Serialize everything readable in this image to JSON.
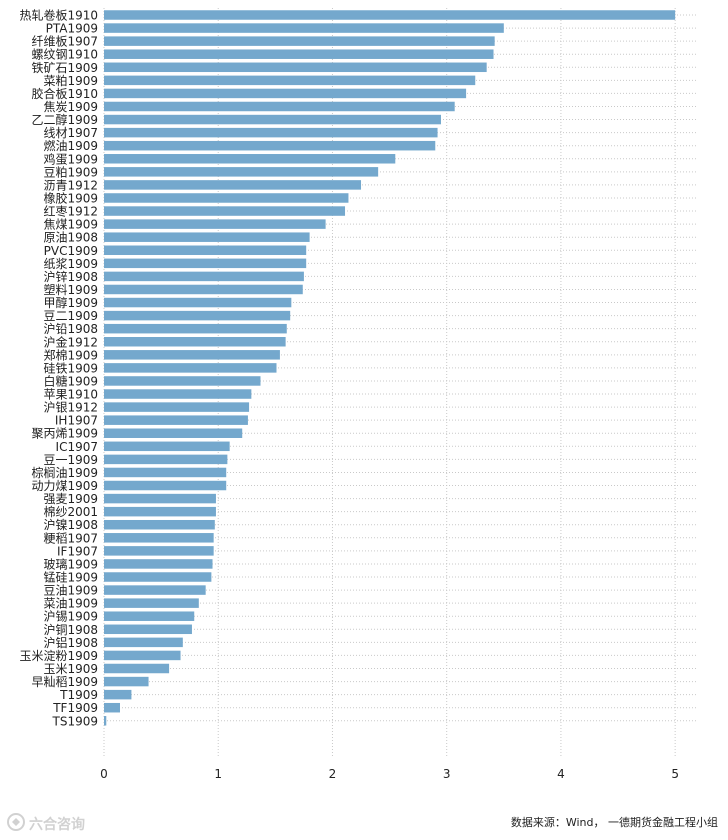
{
  "chart_data": {
    "type": "bar",
    "orientation": "horizontal",
    "categories": [
      "热轧卷板1910",
      "PTA1909",
      "纤维板1907",
      "螺纹钢1910",
      "铁矿石1909",
      "菜粕1909",
      "胶合板1910",
      "焦炭1909",
      "乙二醇1909",
      "线材1907",
      "燃油1909",
      "鸡蛋1909",
      "豆粕1909",
      "沥青1912",
      "橡胶1909",
      "红枣1912",
      "焦煤1909",
      "原油1908",
      "PVC1909",
      "纸浆1909",
      "沪锌1908",
      "塑料1909",
      "甲醇1909",
      "豆二1909",
      "沪铅1908",
      "沪金1912",
      "郑棉1909",
      "硅铁1909",
      "白糖1909",
      "苹果1910",
      "沪银1912",
      "IH1907",
      "聚丙烯1909",
      "IC1907",
      "豆一1909",
      "棕榈油1909",
      "动力煤1909",
      "强麦1909",
      "棉纱2001",
      "沪镍1908",
      "粳稻1907",
      "IF1907",
      "玻璃1909",
      "锰硅1909",
      "豆油1909",
      "菜油1909",
      "沪锡1909",
      "沪铜1908",
      "沪铝1908",
      "玉米淀粉1909",
      "玉米1909",
      "早籼稻1909",
      "T1909",
      "TF1909",
      "TS1909"
    ],
    "values": [
      5.0,
      3.5,
      3.42,
      3.41,
      3.35,
      3.25,
      3.17,
      3.07,
      2.95,
      2.92,
      2.9,
      2.55,
      2.4,
      2.25,
      2.14,
      2.11,
      1.94,
      1.8,
      1.77,
      1.77,
      1.75,
      1.74,
      1.64,
      1.63,
      1.6,
      1.59,
      1.54,
      1.51,
      1.37,
      1.29,
      1.27,
      1.26,
      1.21,
      1.1,
      1.08,
      1.07,
      1.07,
      0.98,
      0.98,
      0.97,
      0.96,
      0.96,
      0.95,
      0.94,
      0.89,
      0.83,
      0.79,
      0.77,
      0.69,
      0.67,
      0.57,
      0.39,
      0.24,
      0.14,
      0.02
    ],
    "xlim": [
      0,
      5.2
    ],
    "xticks": [
      "0",
      "1",
      "2",
      "3",
      "4",
      "5"
    ],
    "grid": true,
    "bar_color": "#74a8cd",
    "grid_color": "#c9c9c9"
  },
  "source_text": "数据来源：Wind， 一德期货金融工程小组",
  "watermark": {
    "text": "六合咨询",
    "icon": "logo-icon"
  }
}
